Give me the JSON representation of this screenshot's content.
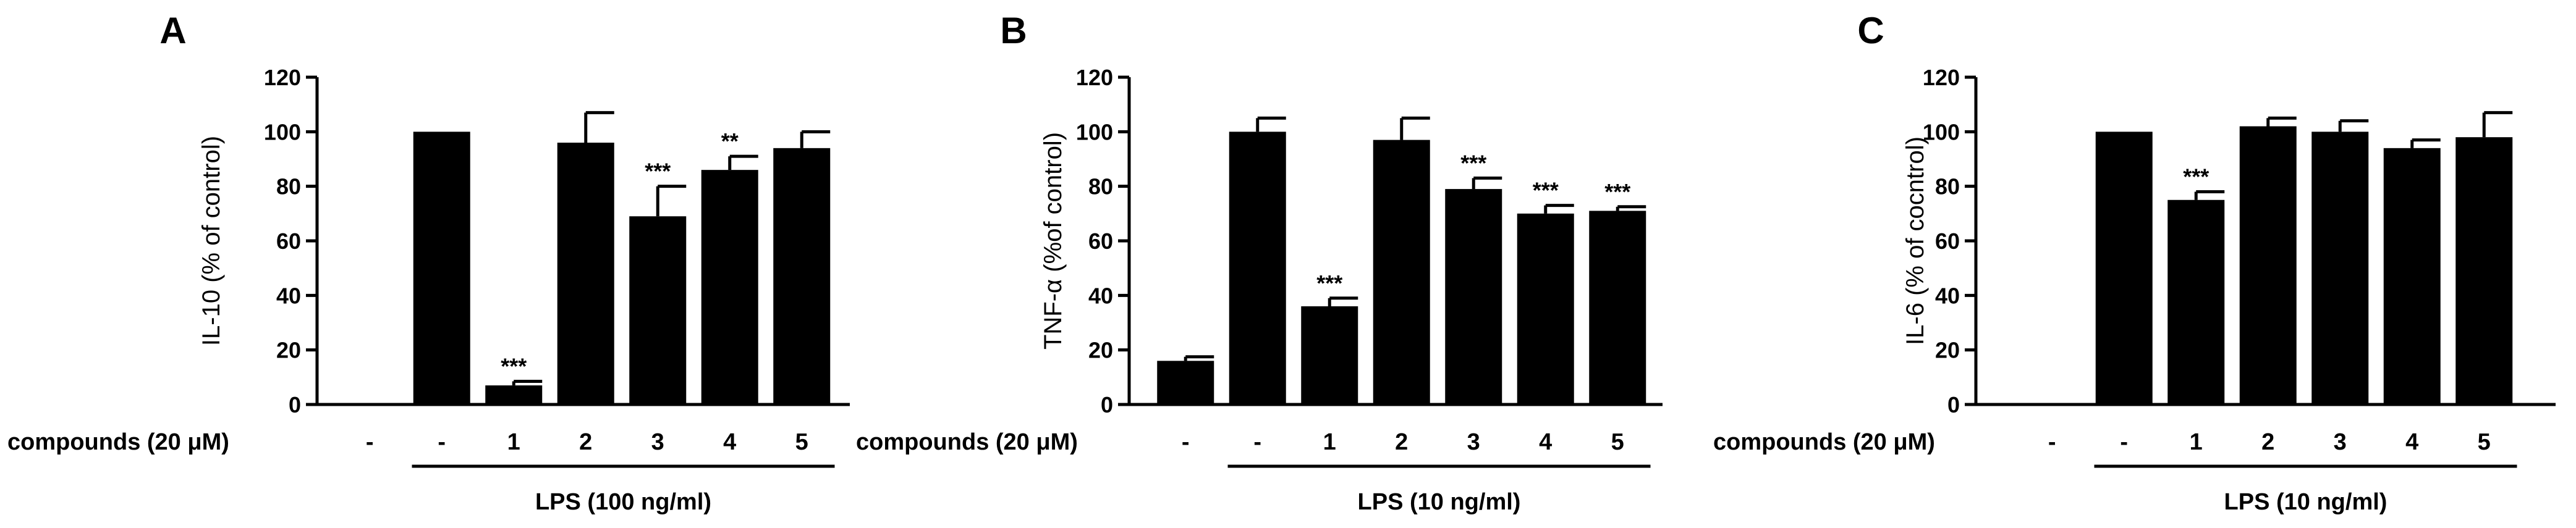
{
  "chart_data": [
    {
      "type": "bar",
      "panel_label": "A",
      "ylabel": "IL-10 (% of control)",
      "ylim": [
        0,
        120
      ],
      "yticks": [
        0,
        20,
        40,
        60,
        80,
        100,
        120
      ],
      "row_label": "compounds (20 μM)",
      "categories": [
        "-",
        "-",
        "1",
        "2",
        "3",
        "4",
        "5"
      ],
      "values": [
        0,
        100,
        7,
        96,
        69,
        86,
        94
      ],
      "errors": [
        0,
        0,
        1.5,
        11,
        11,
        5,
        6
      ],
      "significance": [
        "",
        "",
        "***",
        "",
        "***",
        "**",
        ""
      ],
      "group_label": "LPS (100 ng/ml)",
      "group_span": [
        1,
        6
      ],
      "bar_color": "#000000"
    },
    {
      "type": "bar",
      "panel_label": "B",
      "ylabel": "TNF-α (%of control)",
      "ylim": [
        0,
        120
      ],
      "yticks": [
        0,
        20,
        40,
        60,
        80,
        100,
        120
      ],
      "row_label": "compounds (20 μM)",
      "categories": [
        "-",
        "-",
        "1",
        "2",
        "3",
        "4",
        "5"
      ],
      "values": [
        16,
        100,
        36,
        97,
        79,
        70,
        71
      ],
      "errors": [
        1.5,
        5,
        3,
        8,
        4,
        3,
        1.5
      ],
      "significance": [
        "",
        "",
        "***",
        "",
        "***",
        "***",
        "***"
      ],
      "group_label": "LPS (10 ng/ml)",
      "group_span": [
        1,
        6
      ],
      "bar_color": "#000000"
    },
    {
      "type": "bar",
      "panel_label": "C",
      "ylabel": "IL-6 (% of cocntrol)",
      "ylim": [
        0,
        120
      ],
      "yticks": [
        0,
        20,
        40,
        60,
        80,
        100,
        120
      ],
      "row_label": "compounds  (20 μM)",
      "categories": [
        "-",
        "-",
        "1",
        "2",
        "3",
        "4",
        "5"
      ],
      "values": [
        0,
        100,
        75,
        102,
        100,
        94,
        98
      ],
      "errors": [
        0,
        0,
        3,
        3,
        4,
        3,
        9
      ],
      "significance": [
        "",
        "",
        "***",
        "",
        "",
        "",
        ""
      ],
      "group_label": "LPS (10 ng/ml)",
      "group_span": [
        1,
        6
      ],
      "bar_color": "#000000"
    }
  ]
}
